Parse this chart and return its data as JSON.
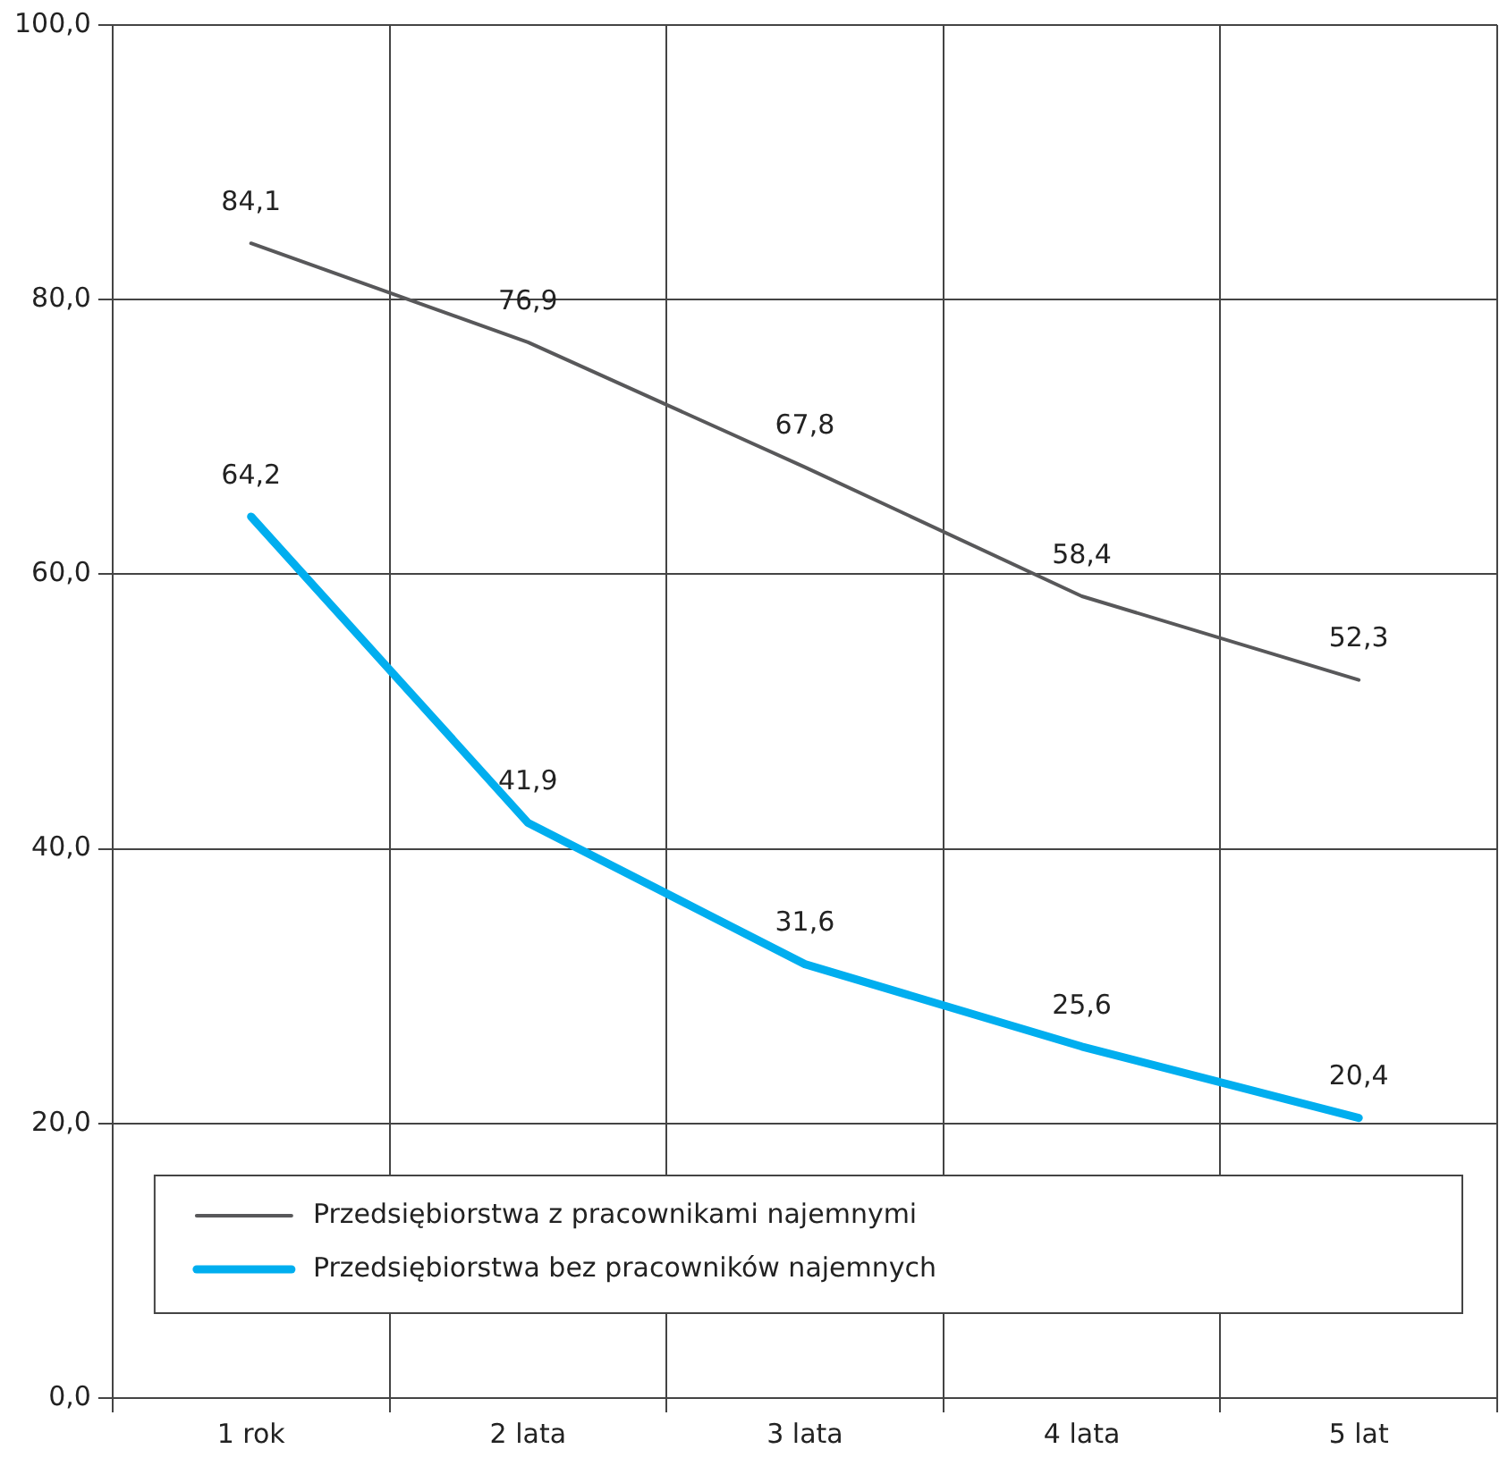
{
  "chart_data": {
    "type": "line",
    "categories": [
      "1 rok",
      "2 lata",
      "3 lata",
      "4 lata",
      "5 lat"
    ],
    "series": [
      {
        "name": "Przedsiębiorstwa z pracownikami najemnymi",
        "color": "#58585a",
        "values": [
          84.1,
          76.9,
          67.8,
          58.4,
          52.3
        ],
        "value_labels": [
          "84,1",
          "76,9",
          "67,8",
          "58,4",
          "52,3"
        ]
      },
      {
        "name": "Przedsiębiorstwa bez pracowników najemnych",
        "color": "#00aeef",
        "values": [
          64.2,
          41.9,
          31.6,
          25.6,
          20.4
        ],
        "value_labels": [
          "64,2",
          "41,9",
          "31,6",
          "25,6",
          "20,4"
        ]
      }
    ],
    "ylim": [
      0,
      100
    ],
    "yticks": [
      {
        "value": 0,
        "label": "0,0"
      },
      {
        "value": 20,
        "label": "20,0"
      },
      {
        "value": 40,
        "label": "40,0"
      },
      {
        "value": 60,
        "label": "60,0"
      },
      {
        "value": 80,
        "label": "80,0"
      },
      {
        "value": 100,
        "label": "100,0"
      }
    ],
    "grid": true,
    "legend": "bottom",
    "marker": "none",
    "line_style": "solid"
  }
}
